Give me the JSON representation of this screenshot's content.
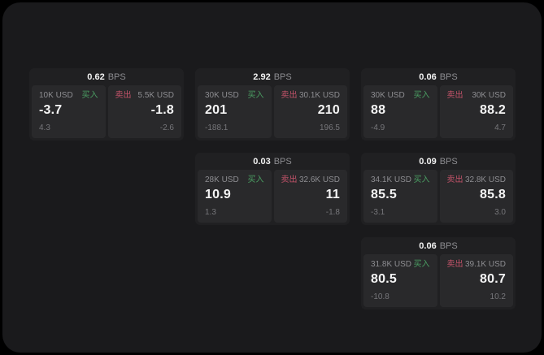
{
  "labels": {
    "bps_unit": "BPS",
    "buy": "买入",
    "sell": "卖出"
  },
  "colors": {
    "page_background": "#000000",
    "panel_background": "#1a1a1c",
    "card_background": "#202022",
    "subpanel_background": "#29292b",
    "buy_accent": "#4a9d62",
    "sell_accent": "#c4536a",
    "primary_text": "#f5f5f5",
    "muted_text": "#8d8d91"
  },
  "cards": [
    {
      "grid": {
        "row": 1,
        "col": 1
      },
      "bps": "0.62",
      "buy": {
        "amount": "10K USD",
        "value": "-3.7",
        "delta": "4.3"
      },
      "sell": {
        "amount": "5.5K USD",
        "value": "-1.8",
        "delta": "-2.6"
      }
    },
    {
      "grid": {
        "row": 1,
        "col": 2
      },
      "bps": "2.92",
      "buy": {
        "amount": "30K USD",
        "value": "201",
        "delta": "-188.1"
      },
      "sell": {
        "amount": "30.1K USD",
        "value": "210",
        "delta": "196.5"
      }
    },
    {
      "grid": {
        "row": 1,
        "col": 3
      },
      "bps": "0.06",
      "buy": {
        "amount": "30K USD",
        "value": "88",
        "delta": "-4.9"
      },
      "sell": {
        "amount": "30K USD",
        "value": "88.2",
        "delta": "4.7"
      }
    },
    {
      "grid": {
        "row": 2,
        "col": 2
      },
      "bps": "0.03",
      "buy": {
        "amount": "28K USD",
        "value": "10.9",
        "delta": "1.3"
      },
      "sell": {
        "amount": "32.6K USD",
        "value": "11",
        "delta": "-1.8"
      }
    },
    {
      "grid": {
        "row": 2,
        "col": 3
      },
      "bps": "0.09",
      "buy": {
        "amount": "34.1K USD",
        "value": "85.5",
        "delta": "-3.1"
      },
      "sell": {
        "amount": "32.8K USD",
        "value": "85.8",
        "delta": "3.0"
      }
    },
    {
      "grid": {
        "row": 3,
        "col": 3
      },
      "bps": "0.06",
      "buy": {
        "amount": "31.8K USD",
        "value": "80.5",
        "delta": "-10.8"
      },
      "sell": {
        "amount": "39.1K USD",
        "value": "80.7",
        "delta": "10.2"
      }
    }
  ]
}
